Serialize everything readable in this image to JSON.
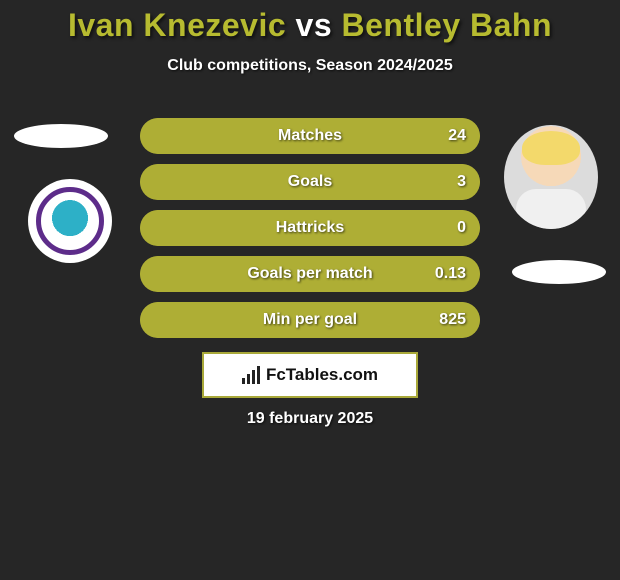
{
  "title": {
    "player1": "Ivan Knezevic",
    "vs": "vs",
    "player2": "Bentley Bahn",
    "player1_color": "#b7bb30",
    "vs_color": "#ffffff",
    "player2_color": "#b7bb30"
  },
  "subtitle": "Club competitions, Season 2024/2025",
  "bar_bg_color": "#aaab33",
  "bar_fill_color": "#aeae35",
  "stats": [
    {
      "label": "Matches",
      "value": "24",
      "fill_pct": 100
    },
    {
      "label": "Goals",
      "value": "3",
      "fill_pct": 100
    },
    {
      "label": "Hattricks",
      "value": "0",
      "fill_pct": 100
    },
    {
      "label": "Goals per match",
      "value": "0.13",
      "fill_pct": 100
    },
    {
      "label": "Min per goal",
      "value": "825",
      "fill_pct": 100
    }
  ],
  "branding_text": "FcTables.com",
  "date_text": "19 february 2025",
  "background_color": "#262626"
}
